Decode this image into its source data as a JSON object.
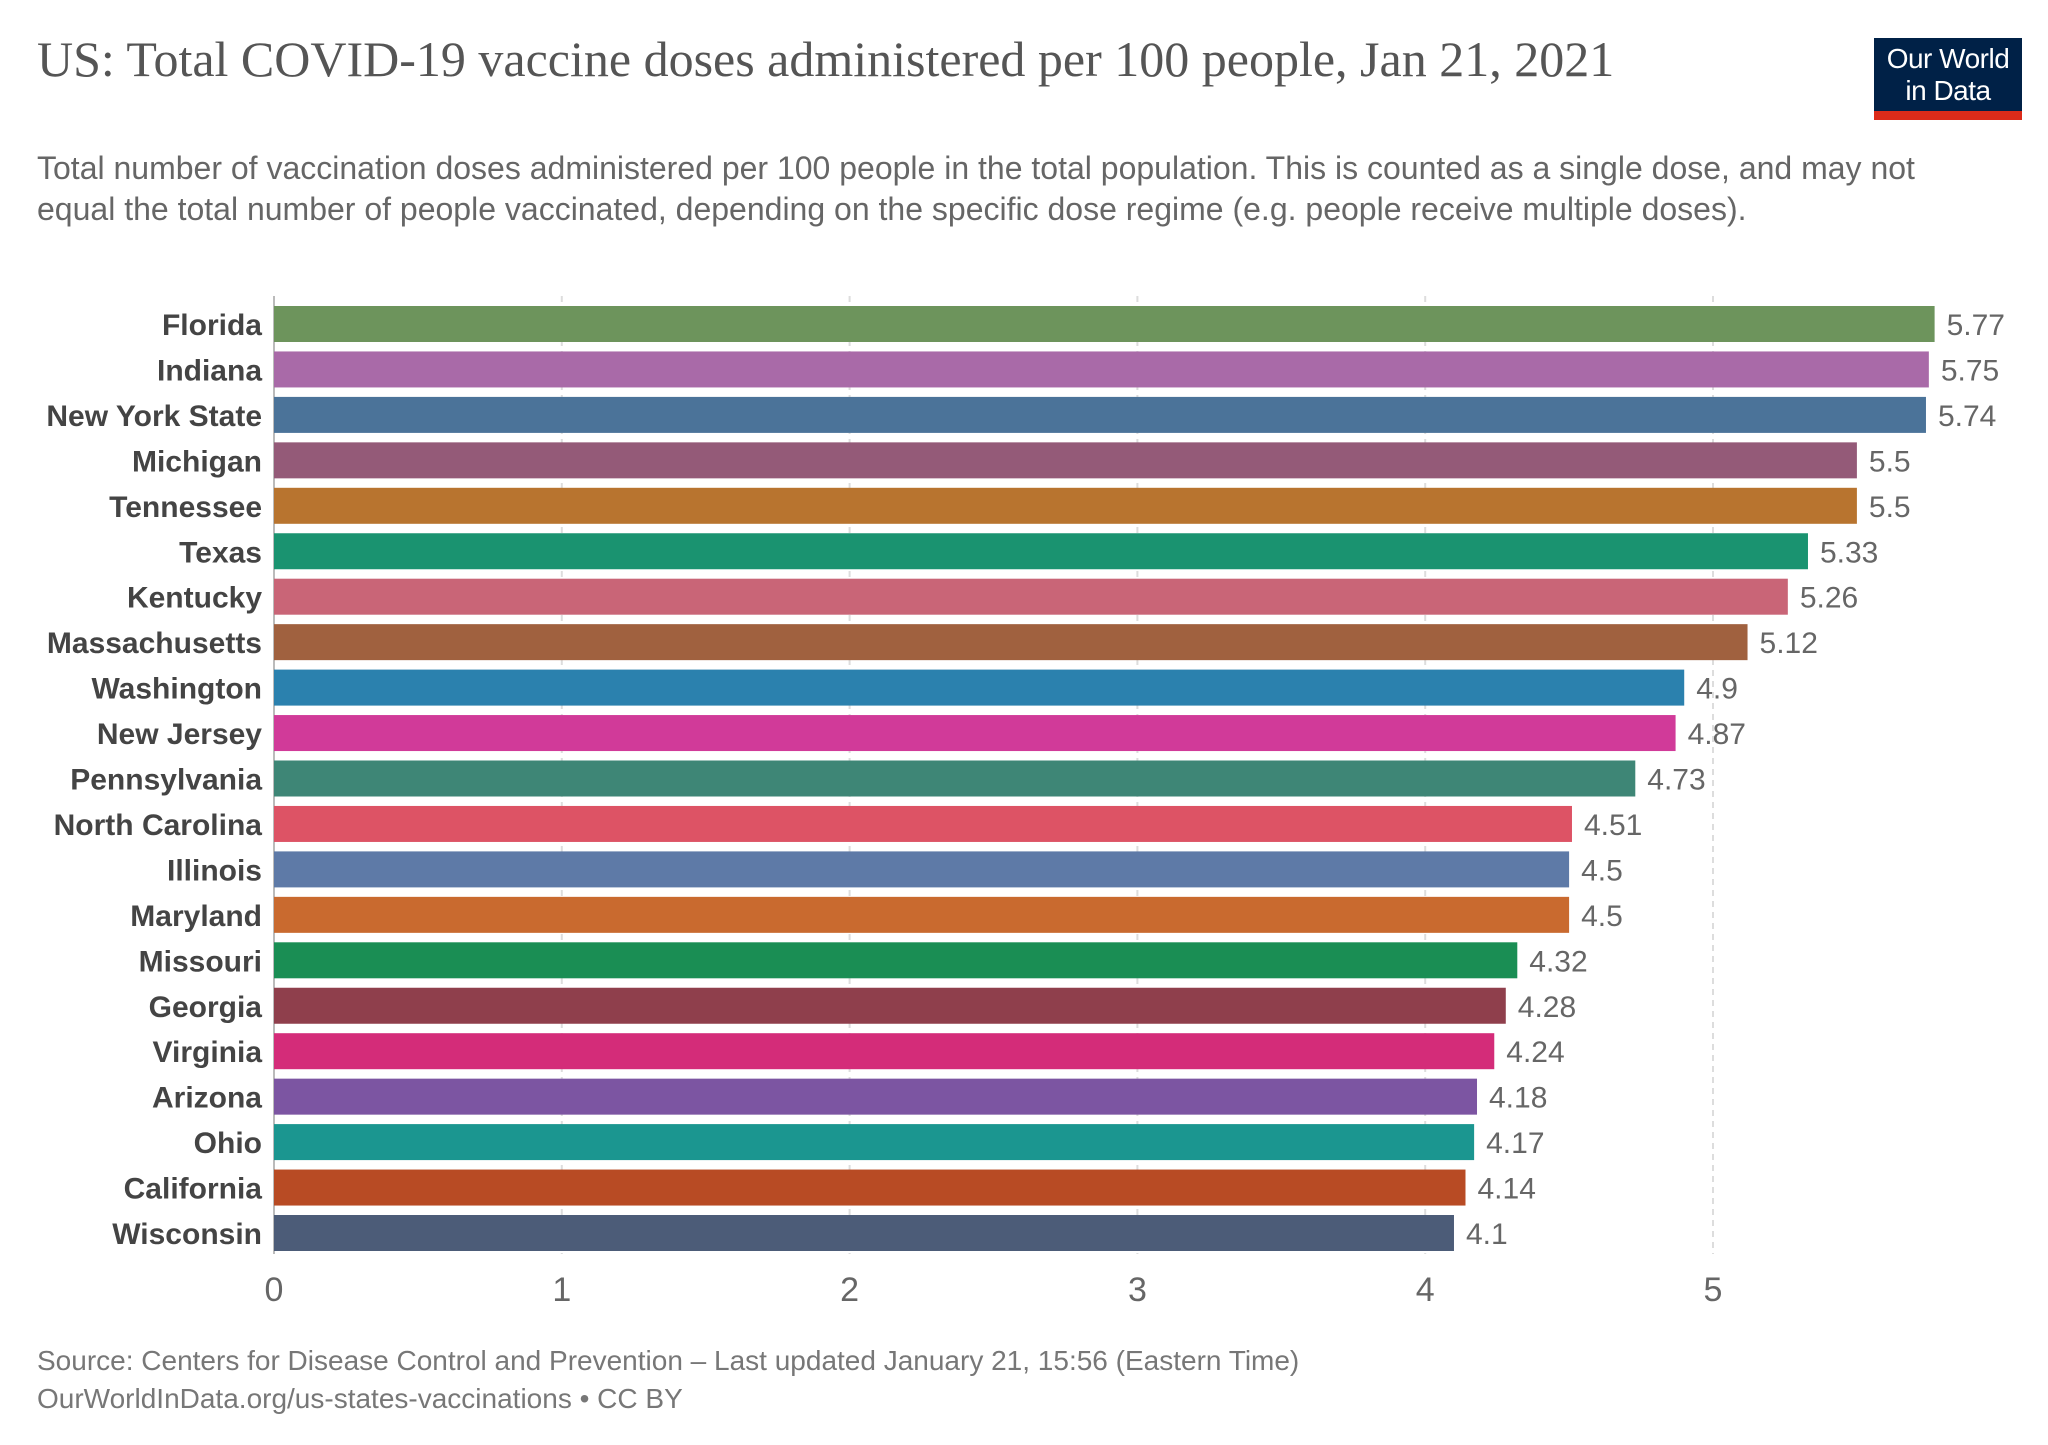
{
  "title": "US: Total COVID-19 vaccine doses administered per 100 people, Jan 21, 2021",
  "subtitle": "Total number of vaccination doses administered per 100 people in the total population. This is counted as a single dose, and may not equal the total number of people vaccinated, depending on the specific dose regime (e.g. people receive multiple doses).",
  "logo": {
    "line1": "Our World",
    "line2": "in Data",
    "background": "#002147",
    "accent": "#dc2b1a"
  },
  "footer": {
    "source": "Source: Centers for Disease Control and Prevention – Last updated January 21, 15:56 (Eastern Time)",
    "link": "OurWorldInData.org/us-states-vaccinations • CC BY"
  },
  "chart_data": {
    "type": "bar",
    "orientation": "horizontal",
    "title": "US: Total COVID-19 vaccine doses administered per 100 people, Jan 21, 2021",
    "xlabel": "",
    "ylabel": "",
    "xlim": [
      0,
      5.77
    ],
    "xticks": [
      0,
      1,
      2,
      3,
      4,
      5
    ],
    "grid": "vertical dashed",
    "categories": [
      "Florida",
      "Indiana",
      "New York State",
      "Michigan",
      "Tennessee",
      "Texas",
      "Kentucky",
      "Massachusetts",
      "Washington",
      "New Jersey",
      "Pennsylvania",
      "North Carolina",
      "Illinois",
      "Maryland",
      "Missouri",
      "Georgia",
      "Virginia",
      "Arizona",
      "Ohio",
      "California",
      "Wisconsin"
    ],
    "values": [
      5.77,
      5.75,
      5.74,
      5.5,
      5.5,
      5.33,
      5.26,
      5.12,
      4.9,
      4.87,
      4.73,
      4.51,
      4.5,
      4.5,
      4.32,
      4.28,
      4.24,
      4.18,
      4.17,
      4.14,
      4.1
    ],
    "colors": [
      "#6d945c",
      "#a96aa8",
      "#4b7399",
      "#945a78",
      "#b8742f",
      "#1a9370",
      "#c96577",
      "#a0613f",
      "#2b81ae",
      "#d13a99",
      "#3e8676",
      "#dd5365",
      "#5e7aa7",
      "#c96a2f",
      "#1a8e54",
      "#8f3f4c",
      "#d42c79",
      "#7c55a2",
      "#1b9690",
      "#b84b24",
      "#4c5c78"
    ]
  }
}
